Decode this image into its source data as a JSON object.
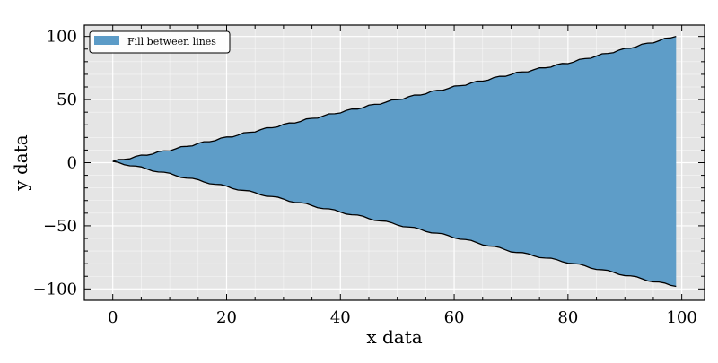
{
  "chart_data": {
    "type": "area",
    "title": "",
    "xlabel": "x data",
    "ylabel": "y data",
    "xlim": [
      -5,
      104
    ],
    "ylim": [
      -109,
      109
    ],
    "x_ticks": [
      0,
      20,
      40,
      60,
      80,
      100
    ],
    "x_tick_labels": [
      "0",
      "20",
      "40",
      "60",
      "80",
      "100"
    ],
    "y_ticks": [
      -100,
      -50,
      0,
      50,
      100
    ],
    "y_tick_labels": [
      "−100",
      "−50",
      "0",
      "50",
      "100"
    ],
    "grid": true,
    "legend": {
      "placement": "upper-left",
      "entries": [
        "Fill between lines"
      ]
    },
    "series": [
      {
        "name": "Fill between lines",
        "x": [
          0,
          10,
          20,
          30,
          40,
          50,
          60,
          70,
          80,
          90,
          99
        ],
        "y_upper": [
          1,
          10,
          20,
          30,
          40,
          50,
          60,
          70,
          79,
          90,
          100
        ],
        "y_lower": [
          1,
          -9,
          -19,
          -29,
          -39,
          -49,
          -59,
          -70,
          -79,
          -89,
          -98
        ]
      }
    ],
    "colors": {
      "fill": "#5b9bc7",
      "line": "#000000",
      "background": "#e5e5e5",
      "grid": "#ffffff"
    }
  }
}
